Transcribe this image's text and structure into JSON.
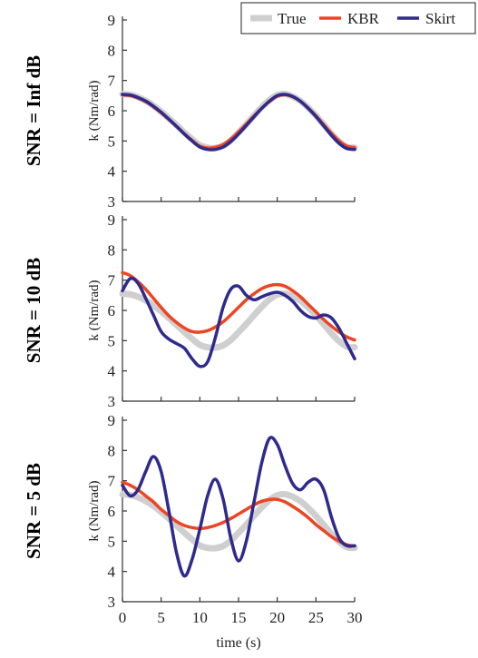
{
  "chart_data": [
    {
      "type": "line",
      "row_label": "SNR = Inf dB",
      "ylabel": "k (Nm/rad)",
      "ylim": [
        3,
        9
      ],
      "yticks": [
        3,
        4,
        5,
        6,
        7,
        8,
        9
      ],
      "xlim": [
        0,
        30
      ],
      "x": [
        0,
        1,
        2,
        3,
        4,
        5,
        6,
        7,
        8,
        9,
        10,
        11,
        12,
        13,
        14,
        15,
        16,
        17,
        18,
        19,
        20,
        21,
        22,
        23,
        24,
        25,
        26,
        27,
        28,
        29,
        30
      ],
      "series": [
        {
          "name": "True",
          "values": [
            6.55,
            6.53,
            6.45,
            6.33,
            6.17,
            5.97,
            5.75,
            5.52,
            5.28,
            5.06,
            4.86,
            4.78,
            4.77,
            4.84,
            5.02,
            5.28,
            5.55,
            5.84,
            6.12,
            6.36,
            6.52,
            6.55,
            6.47,
            6.32,
            6.1,
            5.84,
            5.54,
            5.24,
            4.98,
            4.8,
            4.78
          ]
        },
        {
          "name": "KBR",
          "values": [
            6.52,
            6.5,
            6.42,
            6.3,
            6.13,
            5.93,
            5.71,
            5.48,
            5.24,
            5.02,
            4.83,
            4.77,
            4.79,
            4.88,
            5.06,
            5.3,
            5.56,
            5.83,
            6.08,
            6.3,
            6.48,
            6.53,
            6.46,
            6.31,
            6.09,
            5.83,
            5.54,
            5.25,
            5.0,
            4.83,
            4.78
          ]
        },
        {
          "name": "Skirt",
          "values": [
            6.54,
            6.52,
            6.44,
            6.32,
            6.15,
            5.95,
            5.72,
            5.48,
            5.23,
            5.0,
            4.8,
            4.72,
            4.72,
            4.8,
            4.98,
            5.23,
            5.51,
            5.8,
            6.08,
            6.32,
            6.5,
            6.54,
            6.47,
            6.31,
            6.08,
            5.81,
            5.5,
            5.19,
            4.92,
            4.75,
            4.72
          ]
        }
      ]
    },
    {
      "type": "line",
      "row_label": "SNR = 10 dB",
      "ylabel": "k (Nm/rad)",
      "ylim": [
        3,
        9
      ],
      "yticks": [
        3,
        4,
        5,
        6,
        7,
        8,
        9
      ],
      "xlim": [
        0,
        30
      ],
      "x": [
        0,
        1,
        2,
        3,
        4,
        5,
        6,
        7,
        8,
        9,
        10,
        11,
        12,
        13,
        14,
        15,
        16,
        17,
        18,
        19,
        20,
        21,
        22,
        23,
        24,
        25,
        26,
        27,
        28,
        29,
        30
      ],
      "series": [
        {
          "name": "True",
          "values": [
            6.55,
            6.53,
            6.45,
            6.33,
            6.17,
            5.97,
            5.75,
            5.52,
            5.28,
            5.06,
            4.86,
            4.78,
            4.77,
            4.84,
            5.02,
            5.28,
            5.55,
            5.84,
            6.12,
            6.36,
            6.52,
            6.55,
            6.47,
            6.32,
            6.1,
            5.84,
            5.54,
            5.24,
            4.98,
            4.8,
            4.78
          ]
        },
        {
          "name": "KBR",
          "values": [
            7.25,
            7.15,
            6.95,
            6.7,
            6.4,
            6.1,
            5.82,
            5.6,
            5.42,
            5.3,
            5.28,
            5.33,
            5.45,
            5.62,
            5.85,
            6.1,
            6.35,
            6.55,
            6.72,
            6.82,
            6.85,
            6.8,
            6.65,
            6.45,
            6.2,
            5.95,
            5.7,
            5.48,
            5.28,
            5.12,
            5.02
          ]
        },
        {
          "name": "Skirt",
          "values": [
            6.65,
            7.05,
            6.9,
            6.4,
            5.85,
            5.3,
            5.05,
            4.9,
            4.75,
            4.4,
            4.15,
            4.3,
            5.1,
            6.1,
            6.7,
            6.8,
            6.5,
            6.35,
            6.45,
            6.55,
            6.6,
            6.5,
            6.3,
            6.0,
            5.8,
            5.75,
            5.85,
            5.75,
            5.4,
            4.9,
            4.4
          ]
        }
      ]
    },
    {
      "type": "line",
      "row_label": "SNR = 5 dB",
      "ylabel": "k (Nm/rad)",
      "ylim": [
        3,
        9
      ],
      "yticks": [
        3,
        4,
        5,
        6,
        7,
        8,
        9
      ],
      "xlim": [
        0,
        30
      ],
      "xticks": [
        0,
        5,
        10,
        15,
        20,
        25,
        30
      ],
      "xlabel": "time (s)",
      "x": [
        0,
        1,
        2,
        3,
        4,
        5,
        6,
        7,
        8,
        9,
        10,
        11,
        12,
        13,
        14,
        15,
        16,
        17,
        18,
        19,
        20,
        21,
        22,
        23,
        24,
        25,
        26,
        27,
        28,
        29,
        30
      ],
      "series": [
        {
          "name": "True",
          "values": [
            6.55,
            6.53,
            6.45,
            6.33,
            6.17,
            5.97,
            5.75,
            5.52,
            5.28,
            5.06,
            4.86,
            4.78,
            4.77,
            4.84,
            5.02,
            5.28,
            5.55,
            5.84,
            6.12,
            6.36,
            6.52,
            6.55,
            6.47,
            6.32,
            6.1,
            5.84,
            5.54,
            5.24,
            4.98,
            4.8,
            4.78
          ]
        },
        {
          "name": "KBR",
          "values": [
            6.95,
            6.85,
            6.7,
            6.5,
            6.3,
            6.05,
            5.85,
            5.65,
            5.52,
            5.45,
            5.42,
            5.45,
            5.52,
            5.62,
            5.75,
            5.9,
            6.05,
            6.2,
            6.32,
            6.38,
            6.38,
            6.3,
            6.15,
            5.98,
            5.78,
            5.55,
            5.35,
            5.15,
            5.0,
            4.88,
            4.85
          ]
        },
        {
          "name": "Skirt",
          "values": [
            6.85,
            6.5,
            6.7,
            7.3,
            7.8,
            7.3,
            6.0,
            4.6,
            3.85,
            4.4,
            5.4,
            6.5,
            7.05,
            6.4,
            5.1,
            4.35,
            5.0,
            6.3,
            7.6,
            8.4,
            8.2,
            7.5,
            6.9,
            6.7,
            6.95,
            7.05,
            6.7,
            5.8,
            5.1,
            4.85,
            4.85
          ]
        }
      ]
    }
  ],
  "legend": {
    "placement": "top-right",
    "entries": [
      {
        "name": "True",
        "color": "#cfcfcf"
      },
      {
        "name": "KBR",
        "color": "#ee4422"
      },
      {
        "name": "Skirt",
        "color": "#2e2a8e"
      }
    ]
  },
  "colors": {
    "True": "#cfcfcf",
    "KBR": "#ee4422",
    "Skirt": "#2e2a8e"
  }
}
